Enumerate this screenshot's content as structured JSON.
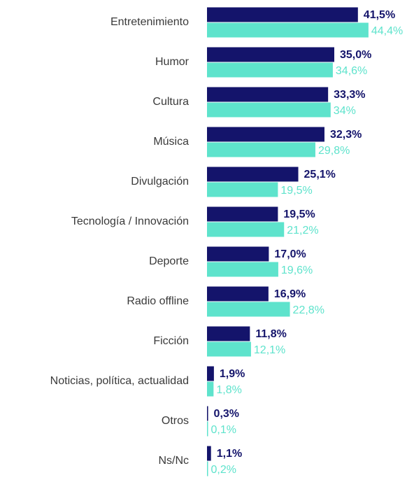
{
  "chart_data": {
    "type": "bar",
    "orientation": "horizontal",
    "categories": [
      "Entretenimiento",
      "Humor",
      "Cultura",
      "Música",
      "Divulgación",
      "Tecnología / Innovación",
      "Deporte",
      "Radio offline",
      "Ficción",
      "Noticias, política, actualidad",
      "Otros",
      "Ns/Nc"
    ],
    "series": [
      {
        "color": "#14146b",
        "values": [
          41.5,
          35.0,
          33.3,
          32.3,
          25.1,
          19.5,
          17.0,
          16.9,
          11.8,
          1.9,
          0.3,
          1.1
        ],
        "value_labels": [
          "41,5%",
          "35,0%",
          "33,3%",
          "32,3%",
          "25,1%",
          "19,5%",
          "17,0%",
          "16,9%",
          "11,8%",
          "1,9%",
          "0,3%",
          "1,1%"
        ]
      },
      {
        "color": "#5ee3cc",
        "values": [
          44.4,
          34.6,
          34,
          29.8,
          19.5,
          21.2,
          19.6,
          22.8,
          12.1,
          1.8,
          0.1,
          0.2
        ],
        "value_labels": [
          "44,4%",
          "34,6%",
          "34%",
          "29,8%",
          "19,5%",
          "21,2%",
          "19,6%",
          "22,8%",
          "12,1%",
          "1,8%",
          "0,1%",
          "0,2%"
        ]
      }
    ]
  }
}
